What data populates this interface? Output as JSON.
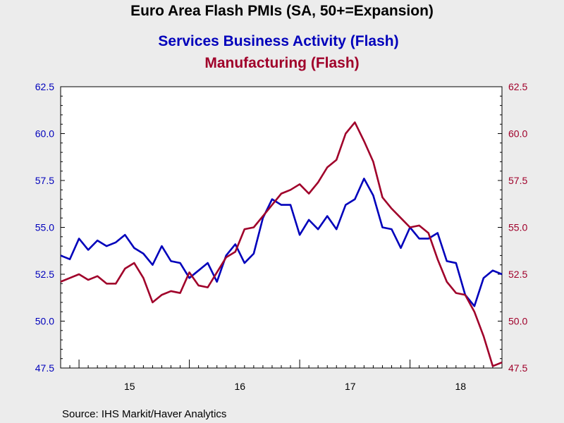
{
  "chart_data": {
    "type": "line",
    "title": "Euro Area Flash PMIs (SA, 50+=Expansion)",
    "source": "Source:  IHS Markit/Haver Analytics",
    "x_start": "2014-11",
    "x_tick_labels": [
      "15",
      "16",
      "17",
      "18"
    ],
    "y_left": {
      "ylim": [
        47.5,
        62.5
      ],
      "ticks": [
        "62.5",
        "60.0",
        "57.5",
        "55.0",
        "52.5",
        "50.0",
        "47.5"
      ],
      "color": "#0000bb"
    },
    "y_right": {
      "ylim": [
        47.5,
        62.5
      ],
      "ticks": [
        "62.5",
        "60.0",
        "57.5",
        "55.0",
        "52.5",
        "50.0",
        "47.5"
      ],
      "color": "#a0002a"
    },
    "grid": false,
    "series": [
      {
        "name": "Services Business Activity (Flash)",
        "axis": "left",
        "color": "#0000bb",
        "values": [
          53.5,
          53.3,
          54.4,
          53.8,
          54.3,
          54.0,
          54.2,
          54.6,
          53.9,
          53.6,
          53.0,
          54.0,
          53.2,
          53.1,
          52.3,
          52.7,
          53.1,
          52.1,
          53.5,
          54.1,
          53.1,
          53.6,
          55.5,
          56.5,
          56.2,
          56.2,
          54.6,
          55.4,
          54.9,
          55.6,
          54.9,
          56.2,
          56.5,
          57.6,
          56.7,
          55.0,
          54.9,
          53.9,
          55.0,
          54.4,
          54.4,
          54.7,
          53.2,
          53.1,
          51.4,
          50.8,
          52.3,
          52.7,
          52.5
        ]
      },
      {
        "name": "Manufacturing (Flash)",
        "axis": "right",
        "color": "#a0002a",
        "values": [
          52.1,
          52.3,
          52.5,
          52.2,
          52.4,
          52.0,
          52.0,
          52.8,
          53.1,
          52.3,
          51.0,
          51.4,
          51.6,
          51.5,
          52.6,
          51.9,
          51.8,
          52.6,
          53.4,
          53.7,
          54.9,
          55.0,
          55.6,
          56.2,
          56.8,
          57.0,
          57.3,
          56.8,
          57.4,
          58.2,
          58.6,
          60.0,
          60.6,
          59.6,
          58.5,
          56.6,
          56.0,
          55.5,
          55.0,
          55.1,
          54.7,
          53.3,
          52.1,
          51.5,
          51.4,
          50.5,
          49.2,
          47.6,
          47.8
        ]
      }
    ]
  }
}
